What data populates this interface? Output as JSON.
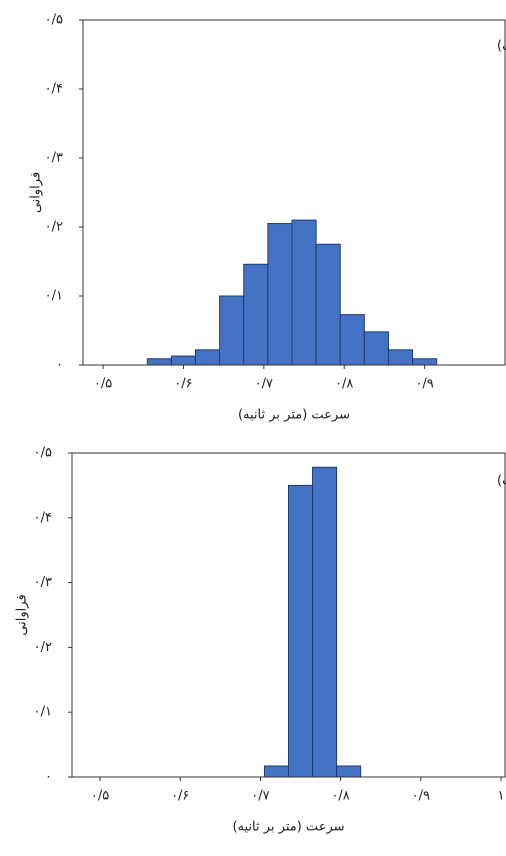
{
  "chart_data": [
    {
      "type": "histogram",
      "panel_label": "(الف)",
      "x_label": "سرعت (متر بر ثانیه)",
      "y_label": "فراوانی",
      "bins": [
        0.555,
        0.585,
        0.615,
        0.645,
        0.675,
        0.705,
        0.735,
        0.765,
        0.795,
        0.825,
        0.855,
        0.885,
        0.915
      ],
      "values": [
        0.009,
        0.013,
        0.022,
        0.1,
        0.146,
        0.205,
        0.21,
        0.175,
        0.073,
        0.048,
        0.022,
        0.009
      ],
      "color": "#4472c4",
      "xlim": [
        0.475,
        1.0
      ],
      "ylim": [
        0,
        0.5
      ],
      "xticks": [
        {
          "value": 0.5,
          "label": "۰/۵"
        },
        {
          "value": 0.6,
          "label": "۰/۶"
        },
        {
          "value": 0.7,
          "label": "۰/۷"
        },
        {
          "value": 0.8,
          "label": "۰/۸"
        },
        {
          "value": 0.9,
          "label": "۰/۹"
        }
      ],
      "yticks": [
        {
          "value": 0,
          "label": "۰"
        },
        {
          "value": 0.1,
          "label": "۰/۱"
        },
        {
          "value": 0.2,
          "label": "۰/۲"
        },
        {
          "value": 0.3,
          "label": "۰/۳"
        },
        {
          "value": 0.4,
          "label": "۰/۴"
        },
        {
          "value": 0.5,
          "label": "۰/۵"
        }
      ]
    },
    {
      "type": "histogram",
      "panel_label": "(ب)",
      "x_label": "سرعت (متر بر ثانیه)",
      "y_label": "فراوانی",
      "bins": [
        0.705,
        0.735,
        0.765,
        0.795,
        0.825
      ],
      "values": [
        0.017,
        0.45,
        0.478,
        0.017
      ],
      "color": "#4472c4",
      "xlim": [
        0.465,
        1.005
      ],
      "ylim": [
        0,
        0.5
      ],
      "xticks": [
        {
          "value": 0.5,
          "label": "۰/۵"
        },
        {
          "value": 0.6,
          "label": "۰/۶"
        },
        {
          "value": 0.7,
          "label": "۰/۷"
        },
        {
          "value": 0.8,
          "label": "۰/۸"
        },
        {
          "value": 0.9,
          "label": "۰/۹"
        },
        {
          "value": 1,
          "label": "۱"
        }
      ],
      "yticks": [
        {
          "value": 0,
          "label": "۰"
        },
        {
          "value": 0.1,
          "label": "۰/۱"
        },
        {
          "value": 0.2,
          "label": "۰/۲"
        },
        {
          "value": 0.3,
          "label": "۰/۳"
        },
        {
          "value": 0.4,
          "label": "۰/۴"
        },
        {
          "value": 0.5,
          "label": "۰/۵"
        }
      ]
    }
  ]
}
